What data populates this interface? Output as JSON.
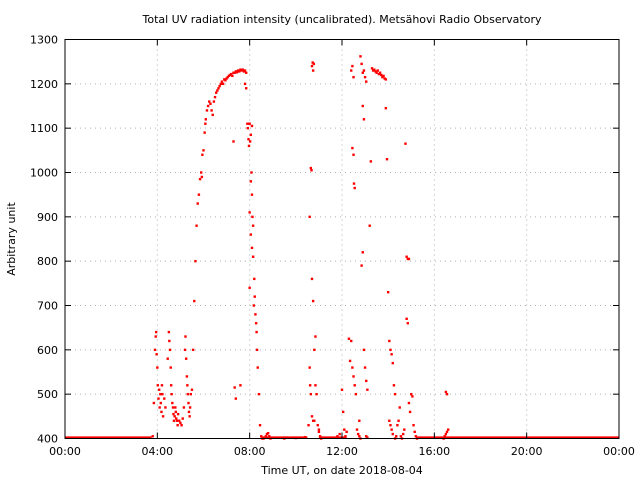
{
  "chart_data": {
    "type": "scatter",
    "title": "Total UV radiation intensity (uncalibrated). Metsähovi Radio Observatory",
    "xlabel": "Time UT, on date 2018-08-04",
    "ylabel": "Arbitrary unit",
    "xlim": [
      0,
      24
    ],
    "ylim": [
      400,
      1300
    ],
    "grid": true,
    "point_color": "#ff0000",
    "x_ticks": [
      {
        "value": 0,
        "label": "00:00"
      },
      {
        "value": 4,
        "label": "04:00"
      },
      {
        "value": 8,
        "label": "08:00"
      },
      {
        "value": 12,
        "label": "12:00"
      },
      {
        "value": 16,
        "label": "16:00"
      },
      {
        "value": 20,
        "label": "20:00"
      },
      {
        "value": 24,
        "label": "00:00"
      }
    ],
    "y_ticks": [
      {
        "value": 400,
        "label": "400"
      },
      {
        "value": 500,
        "label": "500"
      },
      {
        "value": 600,
        "label": "600"
      },
      {
        "value": 700,
        "label": "700"
      },
      {
        "value": 800,
        "label": "800"
      },
      {
        "value": 900,
        "label": "900"
      },
      {
        "value": 1000,
        "label": "1000"
      },
      {
        "value": 1100,
        "label": "1100"
      },
      {
        "value": 1200,
        "label": "1200"
      },
      {
        "value": 1300,
        "label": "1300"
      }
    ],
    "series": [
      {
        "points": [
          [
            3.8,
            405
          ],
          [
            3.85,
            480
          ],
          [
            3.9,
            600
          ],
          [
            3.93,
            630
          ],
          [
            3.95,
            640
          ],
          [
            3.97,
            590
          ],
          [
            4.0,
            560
          ],
          [
            4.02,
            520
          ],
          [
            4.05,
            490
          ],
          [
            4.08,
            510
          ],
          [
            4.1,
            470
          ],
          [
            4.13,
            500
          ],
          [
            4.15,
            480
          ],
          [
            4.18,
            460
          ],
          [
            4.2,
            520
          ],
          [
            4.22,
            500
          ],
          [
            4.25,
            450
          ],
          [
            4.3,
            490
          ],
          [
            4.35,
            470
          ],
          [
            4.45,
            580
          ],
          [
            4.5,
            640
          ],
          [
            4.52,
            620
          ],
          [
            4.55,
            600
          ],
          [
            4.58,
            560
          ],
          [
            4.6,
            520
          ],
          [
            4.62,
            500
          ],
          [
            4.65,
            480
          ],
          [
            4.68,
            470
          ],
          [
            4.7,
            455
          ],
          [
            4.72,
            440
          ],
          [
            4.75,
            450
          ],
          [
            4.78,
            470
          ],
          [
            4.8,
            460
          ],
          [
            4.82,
            445
          ],
          [
            4.85,
            440
          ],
          [
            4.88,
            430
          ],
          [
            4.9,
            455
          ],
          [
            4.95,
            440
          ],
          [
            5.0,
            435
          ],
          [
            5.05,
            430
          ],
          [
            5.1,
            445
          ],
          [
            5.15,
            470
          ],
          [
            5.2,
            600
          ],
          [
            5.22,
            630
          ],
          [
            5.25,
            580
          ],
          [
            5.28,
            540
          ],
          [
            5.3,
            520
          ],
          [
            5.32,
            500
          ],
          [
            5.35,
            480
          ],
          [
            5.37,
            460
          ],
          [
            5.4,
            450
          ],
          [
            5.42,
            470
          ],
          [
            5.45,
            500
          ],
          [
            5.5,
            510
          ],
          [
            5.55,
            600
          ],
          [
            5.6,
            710
          ],
          [
            5.65,
            800
          ],
          [
            5.7,
            880
          ],
          [
            5.75,
            930
          ],
          [
            5.8,
            950
          ],
          [
            5.85,
            985
          ],
          [
            5.9,
            1000
          ],
          [
            5.93,
            990
          ],
          [
            5.95,
            1040
          ],
          [
            6.0,
            1050
          ],
          [
            6.05,
            1090
          ],
          [
            6.08,
            1110
          ],
          [
            6.1,
            1120
          ],
          [
            6.15,
            1140
          ],
          [
            6.2,
            1150
          ],
          [
            6.25,
            1160
          ],
          [
            6.3,
            1155
          ],
          [
            6.35,
            1140
          ],
          [
            6.4,
            1130
          ],
          [
            6.45,
            1160
          ],
          [
            6.5,
            1170
          ],
          [
            6.55,
            1180
          ],
          [
            6.6,
            1185
          ],
          [
            6.65,
            1190
          ],
          [
            6.7,
            1195
          ],
          [
            6.75,
            1200
          ],
          [
            6.8,
            1205
          ],
          [
            6.85,
            1200
          ],
          [
            6.9,
            1210
          ],
          [
            6.95,
            1208
          ],
          [
            7.0,
            1212
          ],
          [
            7.05,
            1215
          ],
          [
            7.1,
            1218
          ],
          [
            7.15,
            1220
          ],
          [
            7.2,
            1222
          ],
          [
            7.25,
            1218
          ],
          [
            7.3,
            1225
          ],
          [
            7.35,
            1225
          ],
          [
            7.4,
            1228
          ],
          [
            7.45,
            1226
          ],
          [
            7.5,
            1230
          ],
          [
            7.55,
            1228
          ],
          [
            7.6,
            1232
          ],
          [
            7.65,
            1230
          ],
          [
            7.7,
            1232
          ],
          [
            7.75,
            1228
          ],
          [
            7.8,
            1230
          ],
          [
            7.85,
            1225
          ],
          [
            7.3,
            1070
          ],
          [
            7.35,
            515
          ],
          [
            7.4,
            490
          ],
          [
            7.8,
            1200
          ],
          [
            7.85,
            1190
          ],
          [
            7.9,
            1110
          ],
          [
            7.92,
            1100
          ],
          [
            7.95,
            1075
          ],
          [
            7.97,
            1060
          ],
          [
            8.0,
            1110
          ],
          [
            8.02,
            1070
          ],
          [
            8.05,
            1085
          ],
          [
            8.1,
            1105
          ],
          [
            8.0,
            910
          ],
          [
            8.05,
            980
          ],
          [
            8.08,
            1000
          ],
          [
            8.1,
            950
          ],
          [
            8.12,
            900
          ],
          [
            8.15,
            880
          ],
          [
            8.0,
            740
          ],
          [
            8.05,
            860
          ],
          [
            8.1,
            830
          ],
          [
            8.15,
            810
          ],
          [
            8.18,
            700
          ],
          [
            8.2,
            760
          ],
          [
            8.22,
            720
          ],
          [
            8.25,
            680
          ],
          [
            8.28,
            660
          ],
          [
            8.3,
            640
          ],
          [
            8.32,
            600
          ],
          [
            8.35,
            560
          ],
          [
            8.4,
            500
          ],
          [
            8.45,
            430
          ],
          [
            8.5,
            405
          ],
          [
            8.55,
            400
          ],
          [
            8.6,
            400
          ],
          [
            8.7,
            405
          ],
          [
            8.75,
            410
          ],
          [
            8.8,
            412
          ],
          [
            8.85,
            405
          ],
          [
            8.9,
            400
          ],
          [
            10.55,
            430
          ],
          [
            10.6,
            900
          ],
          [
            10.65,
            1010
          ],
          [
            10.68,
            1005
          ],
          [
            10.7,
            1240
          ],
          [
            10.73,
            1248
          ],
          [
            10.75,
            1230
          ],
          [
            10.78,
            1245
          ],
          [
            10.7,
            760
          ],
          [
            10.75,
            710
          ],
          [
            10.8,
            600
          ],
          [
            10.85,
            630
          ],
          [
            10.6,
            560
          ],
          [
            10.62,
            520
          ],
          [
            10.65,
            500
          ],
          [
            10.7,
            450
          ],
          [
            10.75,
            440
          ],
          [
            10.8,
            440
          ],
          [
            10.85,
            520
          ],
          [
            10.9,
            500
          ],
          [
            10.95,
            430
          ],
          [
            11.0,
            415
          ],
          [
            11.05,
            405
          ],
          [
            11.1,
            400
          ],
          [
            11.0,
            420
          ],
          [
            12.0,
            510
          ],
          [
            12.05,
            460
          ],
          [
            12.1,
            420
          ],
          [
            12.15,
            405
          ],
          [
            12.2,
            415
          ],
          [
            12.3,
            625
          ],
          [
            12.35,
            575
          ],
          [
            12.4,
            620
          ],
          [
            12.45,
            560
          ],
          [
            12.5,
            540
          ],
          [
            12.55,
            520
          ],
          [
            12.6,
            500
          ],
          [
            12.65,
            420
          ],
          [
            12.7,
            410
          ],
          [
            12.75,
            405
          ],
          [
            12.8,
            400
          ],
          [
            12.4,
            1230
          ],
          [
            12.45,
            1240
          ],
          [
            12.5,
            1215
          ],
          [
            12.45,
            1055
          ],
          [
            12.5,
            1040
          ],
          [
            12.52,
            975
          ],
          [
            12.55,
            965
          ],
          [
            12.8,
            1262
          ],
          [
            12.85,
            1245
          ],
          [
            12.9,
            1225
          ],
          [
            12.95,
            1230
          ],
          [
            13.0,
            1215
          ],
          [
            13.05,
            1205
          ],
          [
            12.9,
            1150
          ],
          [
            12.95,
            1120
          ],
          [
            12.85,
            790
          ],
          [
            12.9,
            820
          ],
          [
            12.95,
            600
          ],
          [
            13.0,
            560
          ],
          [
            13.05,
            530
          ],
          [
            13.1,
            510
          ],
          [
            13.2,
            880
          ],
          [
            13.25,
            1025
          ],
          [
            13.3,
            1235
          ],
          [
            13.35,
            1230
          ],
          [
            13.4,
            1232
          ],
          [
            13.45,
            1228
          ],
          [
            13.5,
            1225
          ],
          [
            13.55,
            1230
          ],
          [
            13.6,
            1222
          ],
          [
            13.65,
            1225
          ],
          [
            13.7,
            1220
          ],
          [
            13.75,
            1215
          ],
          [
            13.8,
            1218
          ],
          [
            13.85,
            1212
          ],
          [
            13.9,
            1210
          ],
          [
            13.9,
            1145
          ],
          [
            13.95,
            1030
          ],
          [
            14.0,
            730
          ],
          [
            14.05,
            620
          ],
          [
            14.1,
            600
          ],
          [
            14.15,
            590
          ],
          [
            14.2,
            570
          ],
          [
            14.25,
            520
          ],
          [
            14.3,
            500
          ],
          [
            14.05,
            440
          ],
          [
            14.1,
            430
          ],
          [
            14.15,
            420
          ],
          [
            14.2,
            410
          ],
          [
            14.3,
            400
          ],
          [
            14.35,
            405
          ],
          [
            14.4,
            430
          ],
          [
            14.45,
            440
          ],
          [
            14.5,
            470
          ],
          [
            14.55,
            405
          ],
          [
            14.6,
            400
          ],
          [
            14.65,
            410
          ],
          [
            14.7,
            420
          ],
          [
            14.75,
            1065
          ],
          [
            14.8,
            810
          ],
          [
            14.85,
            805
          ],
          [
            14.9,
            805
          ],
          [
            14.8,
            670
          ],
          [
            14.85,
            660
          ],
          [
            14.9,
            480
          ],
          [
            14.95,
            460
          ],
          [
            15.0,
            500
          ],
          [
            15.05,
            495
          ],
          [
            15.1,
            430
          ],
          [
            15.15,
            415
          ],
          [
            15.2,
            405
          ],
          [
            15.25,
            400
          ],
          [
            16.5,
            505
          ],
          [
            16.55,
            500
          ],
          [
            16.5,
            410
          ],
          [
            16.55,
            415
          ],
          [
            16.6,
            420
          ],
          [
            16.45,
            405
          ],
          [
            16.4,
            400
          ],
          [
            12.75,
            440
          ],
          [
            11.8,
            405
          ],
          [
            11.9,
            410
          ],
          [
            9.5,
            400
          ],
          [
            9.6,
            402
          ],
          [
            10.0,
            401
          ],
          [
            10.4,
            403
          ],
          [
            13.05,
            405
          ],
          [
            13.1,
            402
          ],
          [
            7.6,
            520
          ]
        ]
      }
    ]
  }
}
